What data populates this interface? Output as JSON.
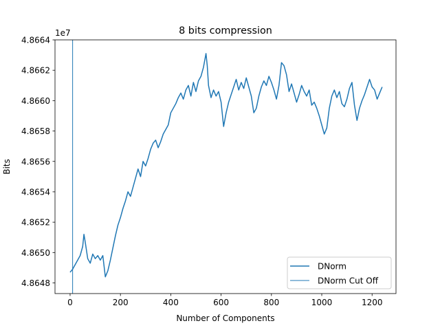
{
  "chart_data": {
    "type": "line",
    "title": "8 bits compression",
    "xlabel": "Number of Components",
    "ylabel": "Bits",
    "offset_text": "1e7",
    "xlim": [
      -60,
      1295
    ],
    "ylim": [
      48647300,
      48664000
    ],
    "xticks": [
      0,
      200,
      400,
      600,
      800,
      1000,
      1200
    ],
    "yticks": [
      48648000,
      48650000,
      48652000,
      48654000,
      48656000,
      48658000,
      48660000,
      48662000,
      48664000
    ],
    "ytick_labels": [
      "4.8648",
      "4.8650",
      "4.8652",
      "4.8654",
      "4.8656",
      "4.8658",
      "4.8660",
      "4.8662",
      "4.8664"
    ],
    "grid": false,
    "legend_position": "lower-right",
    "series": [
      {
        "name": "DNorm",
        "color": "#1f77b4",
        "x": [
          0,
          10,
          20,
          30,
          40,
          50,
          55,
          60,
          70,
          80,
          90,
          100,
          110,
          120,
          130,
          140,
          150,
          160,
          170,
          180,
          190,
          200,
          210,
          220,
          230,
          240,
          250,
          260,
          270,
          280,
          290,
          300,
          310,
          320,
          330,
          340,
          350,
          360,
          370,
          380,
          390,
          400,
          410,
          420,
          430,
          440,
          450,
          460,
          470,
          480,
          490,
          500,
          510,
          520,
          530,
          540,
          545,
          550,
          560,
          570,
          580,
          590,
          600,
          610,
          620,
          630,
          640,
          650,
          660,
          670,
          680,
          690,
          700,
          710,
          720,
          730,
          740,
          750,
          760,
          770,
          780,
          790,
          800,
          810,
          820,
          830,
          840,
          850,
          860,
          870,
          880,
          890,
          900,
          910,
          920,
          930,
          940,
          950,
          960,
          970,
          980,
          990,
          1000,
          1010,
          1020,
          1030,
          1040,
          1050,
          1060,
          1070,
          1080,
          1090,
          1100,
          1110,
          1120,
          1130,
          1140,
          1150,
          1160,
          1170,
          1180,
          1190,
          1200,
          1210,
          1220,
          1230,
          1240
        ],
        "y": [
          48648700,
          48648900,
          48649200,
          48649500,
          48649800,
          48650400,
          48651200,
          48650700,
          48649600,
          48649300,
          48649900,
          48649600,
          48649800,
          48649500,
          48649800,
          48648400,
          48648800,
          48649500,
          48650300,
          48651100,
          48651800,
          48652300,
          48652900,
          48653400,
          48654000,
          48653700,
          48654300,
          48654900,
          48655500,
          48655000,
          48656000,
          48655700,
          48656200,
          48656800,
          48657200,
          48657400,
          48656900,
          48657300,
          48657800,
          48658100,
          48658400,
          48659200,
          48659500,
          48659800,
          48660200,
          48660500,
          48660100,
          48660700,
          48661000,
          48660300,
          48661200,
          48660600,
          48661300,
          48661600,
          48662200,
          48663100,
          48662300,
          48661000,
          48660200,
          48660700,
          48660300,
          48660600,
          48659900,
          48658300,
          48659200,
          48659900,
          48660400,
          48660900,
          48661400,
          48660700,
          48661200,
          48660800,
          48661500,
          48660900,
          48660300,
          48659200,
          48659500,
          48660300,
          48660900,
          48661300,
          48661000,
          48661600,
          48661200,
          48660700,
          48660100,
          48661000,
          48662500,
          48662300,
          48661700,
          48660600,
          48661100,
          48660500,
          48659900,
          48660400,
          48661000,
          48660600,
          48660300,
          48660700,
          48659700,
          48659900,
          48659500,
          48659000,
          48658400,
          48657800,
          48658200,
          48659500,
          48660300,
          48660700,
          48660200,
          48660600,
          48659800,
          48659600,
          48660100,
          48660800,
          48661200,
          48659700,
          48658700,
          48659500,
          48660000,
          48660400,
          48660900,
          48661400,
          48660900,
          48660700,
          48660100,
          48660500,
          48660900
        ]
      },
      {
        "name": "DNorm Cut Off",
        "color": "#1f77b4",
        "style": "vertical-line",
        "x_value": 10
      }
    ]
  }
}
